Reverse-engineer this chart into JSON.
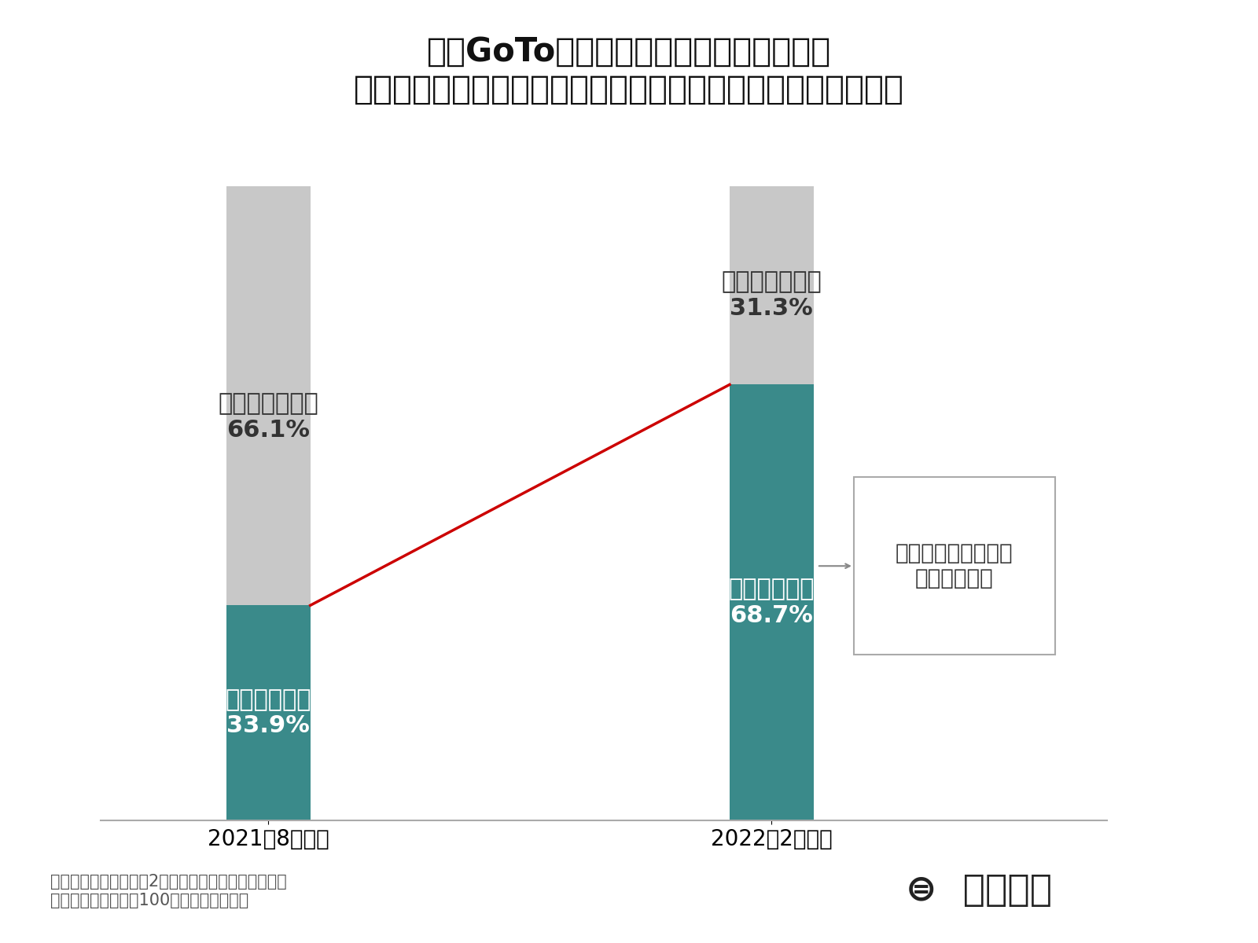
{
  "title_line1": "今後GoToの再開や入国制限の解除など、",
  "title_line2": "観光が再び盛り上がった時に備えて、準備はできていますか？",
  "categories": [
    "2021年8月調査",
    "2022年2月調査"
  ],
  "ready_values": [
    33.9,
    68.7
  ],
  "not_ready_values": [
    66.1,
    31.3
  ],
  "ready_label": "準備している",
  "not_ready_label": "準備していない",
  "ready_color": "#3a8a8a",
  "not_ready_color": "#c8c8c8",
  "red_line_color": "#cc0000",
  "annotation_text": "「準備している」は\n二倍以上増加",
  "footnote": "構成比は小数点以下第2位を四捨五入しているため、\n合計しても必ずしも100とはなりません。",
  "background_color": "#ffffff",
  "title_fontsize": 30,
  "label_fontsize": 22,
  "tick_fontsize": 20,
  "footnote_fontsize": 15,
  "annotation_fontsize": 20
}
